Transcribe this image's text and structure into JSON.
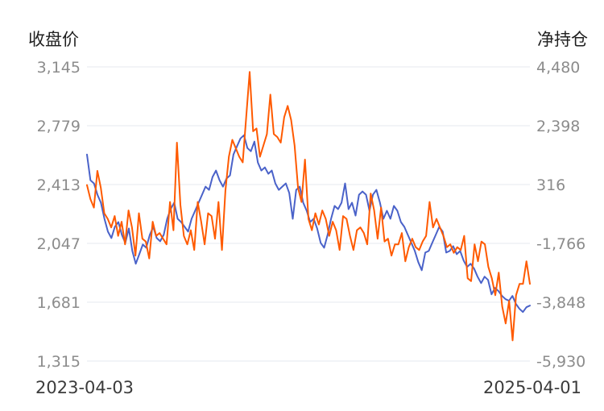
{
  "chart_data": {
    "type": "line",
    "left_axis_title": "收盘价",
    "right_axis_title": "净持仓",
    "left_ticks": [
      "3,145",
      "2,779",
      "2,413",
      "2,047",
      "1,681",
      "1,315"
    ],
    "right_ticks": [
      "4,480",
      "2,398",
      "316",
      "-1,766",
      "-3,848",
      "-5,930"
    ],
    "left_range": [
      1315,
      3145
    ],
    "right_range": [
      -5930,
      4480
    ],
    "x_start_label": "2023-04-03",
    "x_end_label": "2025-04-01",
    "grid": true,
    "series": [
      {
        "axis": "left",
        "color": "#4a62c9",
        "values": [
          2600,
          2440,
          2420,
          2350,
          2300,
          2200,
          2120,
          2080,
          2150,
          2180,
          2100,
          2050,
          2140,
          2000,
          1920,
          1980,
          2040,
          2020,
          2100,
          2150,
          2080,
          2060,
          2100,
          2200,
          2260,
          2300,
          2200,
          2180,
          2150,
          2120,
          2200,
          2250,
          2300,
          2350,
          2400,
          2380,
          2460,
          2500,
          2440,
          2400,
          2450,
          2470,
          2600,
          2650,
          2700,
          2720,
          2640,
          2620,
          2680,
          2550,
          2500,
          2520,
          2480,
          2500,
          2420,
          2380,
          2400,
          2420,
          2360,
          2200,
          2380,
          2400,
          2300,
          2250,
          2180,
          2200,
          2140,
          2050,
          2020,
          2100,
          2200,
          2280,
          2260,
          2300,
          2420,
          2260,
          2300,
          2220,
          2350,
          2370,
          2350,
          2250,
          2350,
          2380,
          2300,
          2200,
          2250,
          2200,
          2280,
          2250,
          2180,
          2150,
          2100,
          2050,
          2000,
          1930,
          1880,
          1990,
          2000,
          2050,
          2100,
          2150,
          2120,
          1990,
          2000,
          2030,
          1980,
          2000,
          1940,
          1900,
          1920,
          1890,
          1840,
          1800,
          1840,
          1820,
          1730,
          1770,
          1750,
          1720,
          1700,
          1690,
          1720,
          1670,
          1640,
          1620,
          1650,
          1660
        ]
      },
      {
        "axis": "right",
        "color": "#ff5a00",
        "values": [
          300,
          -200,
          -500,
          800,
          200,
          -700,
          -900,
          -1200,
          -800,
          -1500,
          -1000,
          -1800,
          -600,
          -1200,
          -2200,
          -700,
          -1600,
          -1700,
          -2300,
          -1000,
          -1500,
          -1400,
          -1600,
          -1800,
          -300,
          -1300,
          1800,
          -400,
          -1500,
          -1800,
          -1300,
          -2000,
          -300,
          -1000,
          -1800,
          -700,
          -800,
          -1600,
          -300,
          -2000,
          100,
          1300,
          1900,
          1600,
          1300,
          1100,
          2700,
          4300,
          2200,
          2300,
          1300,
          1700,
          2100,
          3500,
          2100,
          2000,
          1800,
          2700,
          3100,
          2600,
          1700,
          200,
          -300,
          1200,
          -900,
          -1300,
          -700,
          -1100,
          -600,
          -900,
          -1500,
          -1000,
          -1300,
          -2000,
          -800,
          -900,
          -1500,
          -2000,
          -1300,
          -1200,
          -1400,
          -1800,
          0,
          -600,
          -1600,
          -500,
          -1700,
          -1600,
          -2200,
          -1800,
          -1800,
          -1400,
          -2400,
          -1900,
          -1600,
          -1900,
          -2000,
          -1700,
          -1500,
          -300,
          -1200,
          -900,
          -1200,
          -1500,
          -1900,
          -1800,
          -2100,
          -1900,
          -2000,
          -1500,
          -3000,
          -3100,
          -1800,
          -2400,
          -1700,
          -1800,
          -2600,
          -3000,
          -3600,
          -2800,
          -4000,
          -4600,
          -3800,
          -5200,
          -3600,
          -3200,
          -3200,
          -2400,
          -3200
        ]
      }
    ]
  }
}
